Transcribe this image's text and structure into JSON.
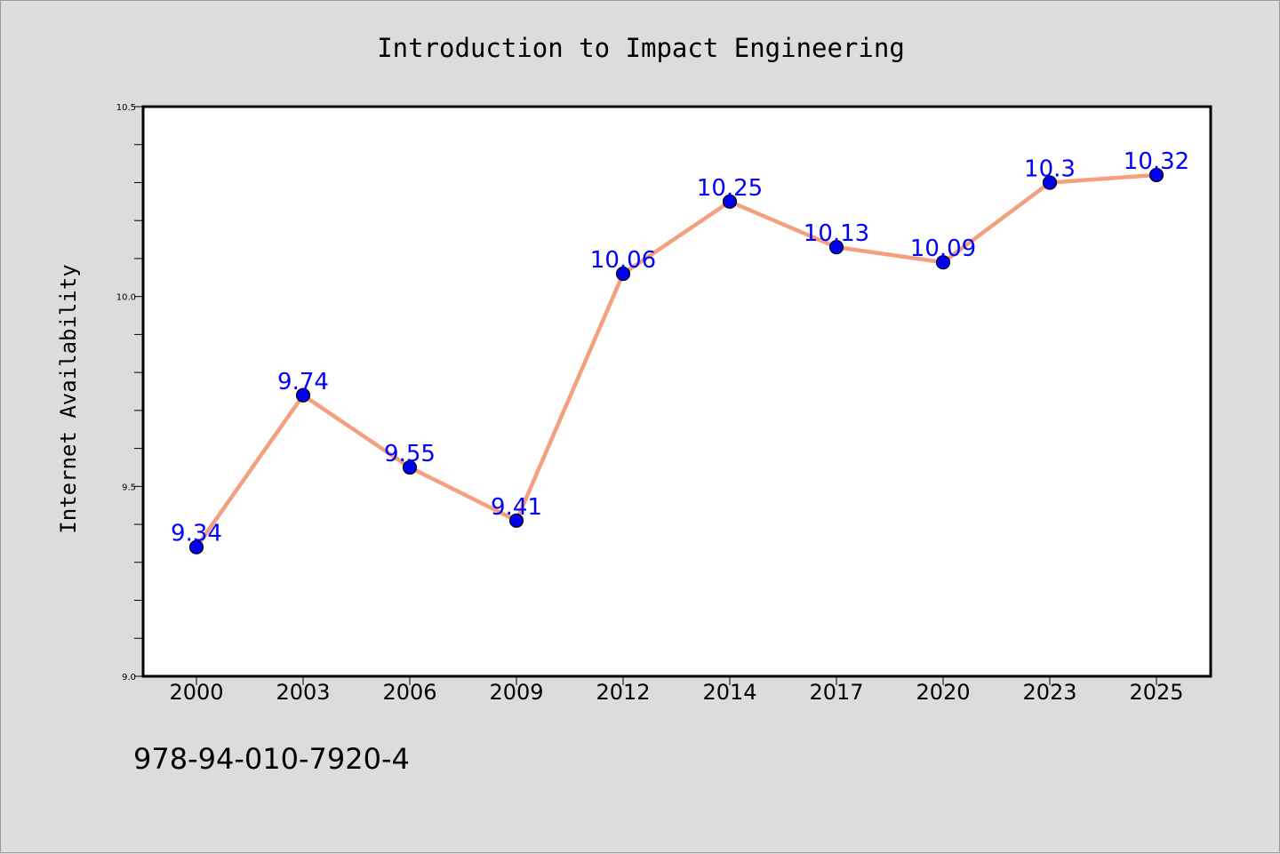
{
  "colors": {
    "background": "#dcdcdc",
    "plot_background": "#ffffff",
    "line": "#f4a07e",
    "marker": "#0000ee",
    "data_label": "#0000ff"
  },
  "isbn": "978-94-010-7920-4",
  "chart_data": {
    "type": "line",
    "title": "Introduction to Impact Engineering",
    "xlabel": "",
    "ylabel": "Internet Availability",
    "categories": [
      "2000",
      "2003",
      "2006",
      "2009",
      "2012",
      "2014",
      "2017",
      "2020",
      "2023",
      "2025"
    ],
    "series": [
      {
        "values": [
          9.34,
          9.74,
          9.55,
          9.41,
          10.06,
          10.25,
          10.13,
          10.09,
          10.3,
          10.32
        ],
        "labels": [
          "9.34",
          "9.74",
          "9.55",
          "9.41",
          "10.06",
          "10.25",
          "10.13",
          "10.09",
          "10.3",
          "10.32"
        ]
      }
    ],
    "ylim": [
      9.0,
      10.5
    ],
    "y_major_ticks": [
      9.0,
      9.5,
      10.0,
      10.5
    ],
    "y_major_tick_labels": [
      "9.0",
      "9.5",
      "10.0",
      "10.5"
    ],
    "y_minor_step": 0.1,
    "grid": false,
    "legend": "none"
  }
}
